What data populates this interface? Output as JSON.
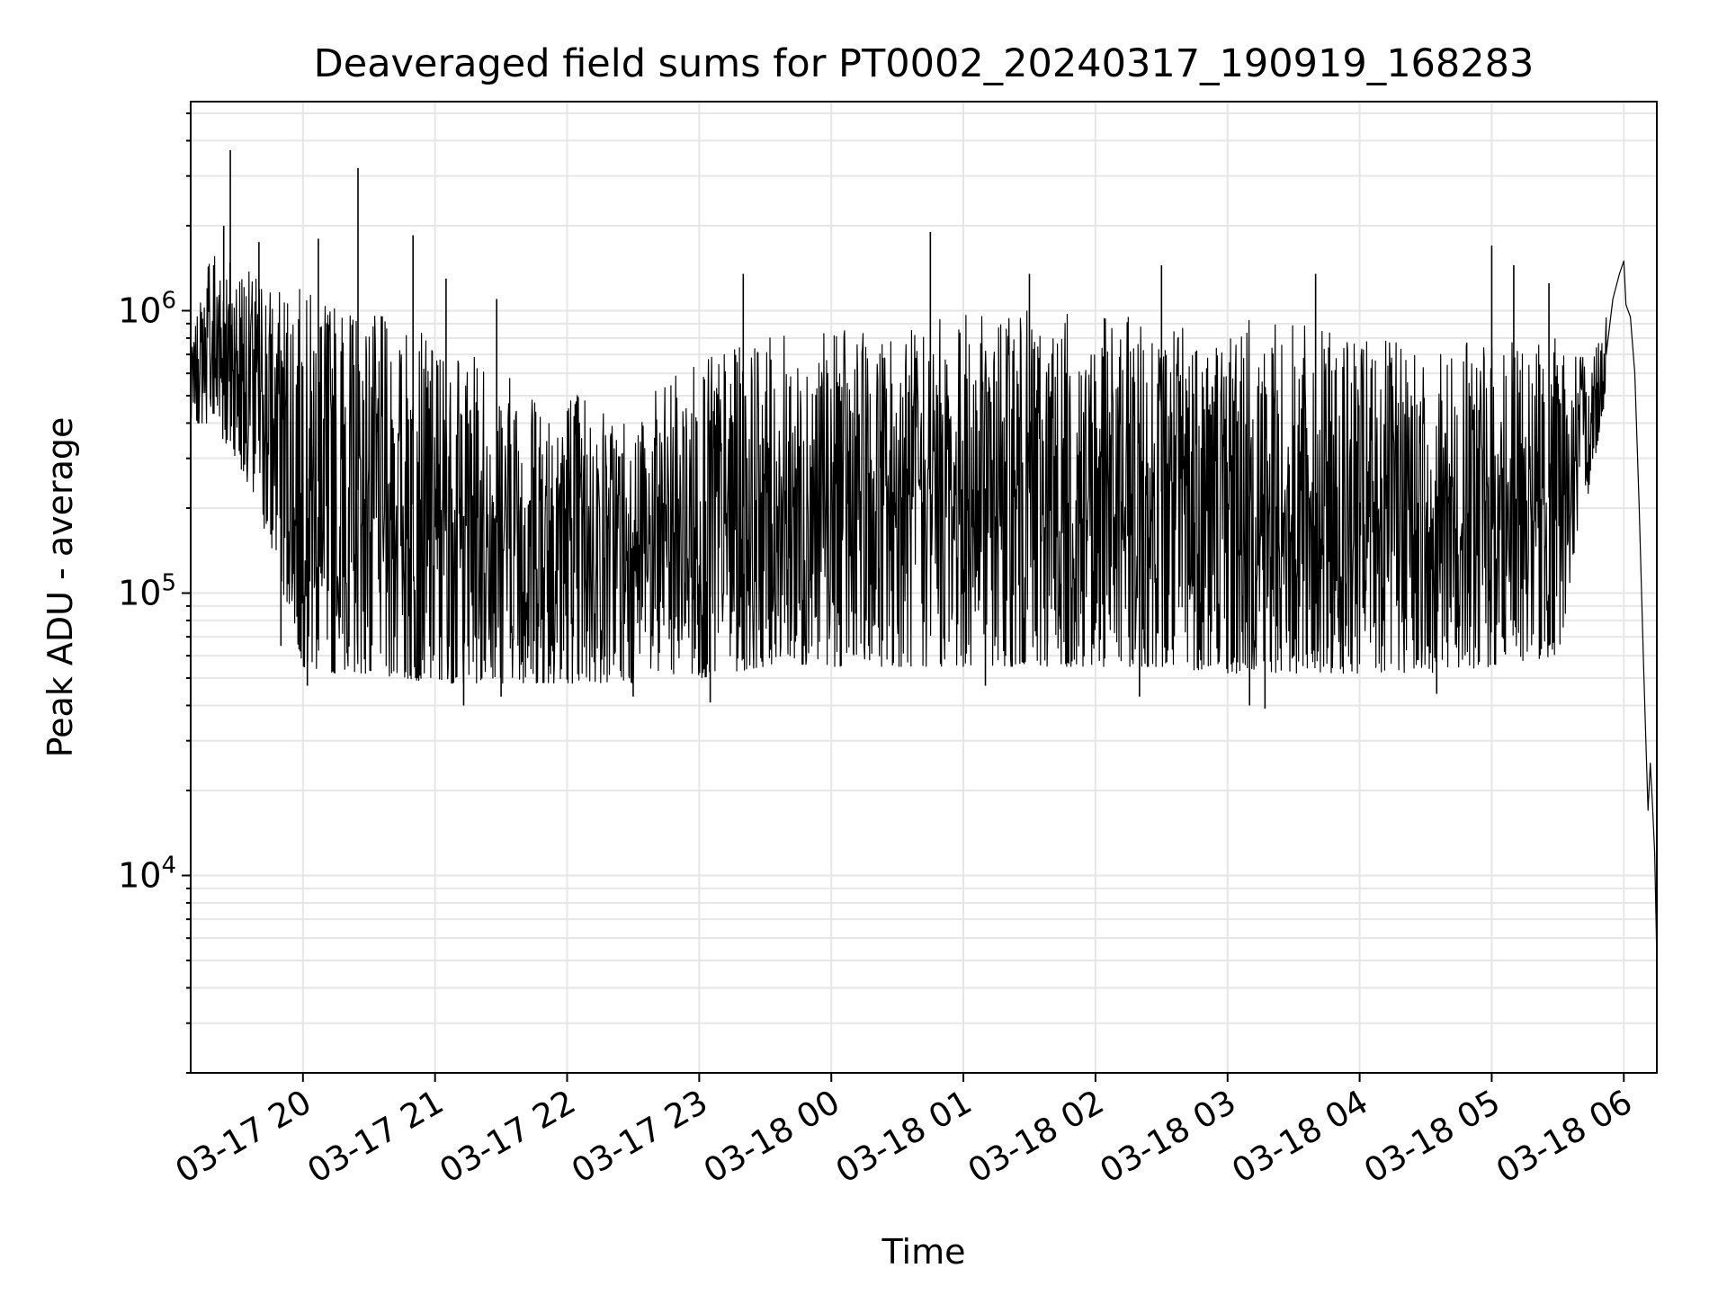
{
  "chart_data": {
    "type": "line",
    "title": "Deaveraged field sums for PT0002_20240317_190919_168283",
    "xlabel": "Time",
    "ylabel": "Peak ADU - average",
    "yscale": "log",
    "ylim": [
      2000,
      5500000
    ],
    "xlim": [
      "2024-03-17 19:09",
      "2024-03-18 06:15"
    ],
    "grid": true,
    "line_color": "#000000",
    "grid_color": "#e6e6e6",
    "x_ticks": [
      {
        "t": "2024-03-17 20:00",
        "label": "03-17 20"
      },
      {
        "t": "2024-03-17 21:00",
        "label": "03-17 21"
      },
      {
        "t": "2024-03-17 22:00",
        "label": "03-17 22"
      },
      {
        "t": "2024-03-17 23:00",
        "label": "03-17 23"
      },
      {
        "t": "2024-03-18 00:00",
        "label": "03-18 00"
      },
      {
        "t": "2024-03-18 01:00",
        "label": "03-18 01"
      },
      {
        "t": "2024-03-18 02:00",
        "label": "03-18 02"
      },
      {
        "t": "2024-03-18 03:00",
        "label": "03-18 03"
      },
      {
        "t": "2024-03-18 04:00",
        "label": "03-18 04"
      },
      {
        "t": "2024-03-18 05:00",
        "label": "03-18 05"
      },
      {
        "t": "2024-03-18 06:00",
        "label": "03-18 06"
      }
    ],
    "y_ticks": [
      {
        "value": 10000,
        "label": "10",
        "exp": "4"
      },
      {
        "value": 100000,
        "label": "10",
        "exp": "5"
      },
      {
        "value": 1000000,
        "label": "10",
        "exp": "6"
      }
    ],
    "envelope": [
      {
        "t": "2024-03-17 19:09",
        "low": 400000,
        "high": 700000
      },
      {
        "t": "2024-03-17 19:18",
        "low": 400000,
        "high": 1800000
      },
      {
        "t": "2024-03-17 19:30",
        "low": 300000,
        "high": 1500000
      },
      {
        "t": "2024-03-17 19:45",
        "low": 150000,
        "high": 1300000
      },
      {
        "t": "2024-03-17 20:00",
        "low": 55000,
        "high": 1200000
      },
      {
        "t": "2024-03-17 20:15",
        "low": 52000,
        "high": 1100000
      },
      {
        "t": "2024-03-17 20:30",
        "low": 52000,
        "high": 1000000
      },
      {
        "t": "2024-03-17 21:00",
        "low": 48000,
        "high": 800000
      },
      {
        "t": "2024-03-17 21:30",
        "low": 48000,
        "high": 650000
      },
      {
        "t": "2024-03-17 22:00",
        "low": 48000,
        "high": 550000
      },
      {
        "t": "2024-03-17 22:30",
        "low": 48000,
        "high": 450000
      },
      {
        "t": "2024-03-17 23:00",
        "low": 50000,
        "high": 700000
      },
      {
        "t": "2024-03-17 23:30",
        "low": 55000,
        "high": 800000
      },
      {
        "t": "2024-03-18 00:00",
        "low": 55000,
        "high": 850000
      },
      {
        "t": "2024-03-18 00:30",
        "low": 55000,
        "high": 850000
      },
      {
        "t": "2024-03-18 01:00",
        "low": 55000,
        "high": 1000000
      },
      {
        "t": "2024-03-18 01:30",
        "low": 55000,
        "high": 1000000
      },
      {
        "t": "2024-03-18 02:00",
        "low": 55000,
        "high": 950000
      },
      {
        "t": "2024-03-18 02:30",
        "low": 55000,
        "high": 950000
      },
      {
        "t": "2024-03-18 03:00",
        "low": 52000,
        "high": 950000
      },
      {
        "t": "2024-03-18 03:30",
        "low": 52000,
        "high": 900000
      },
      {
        "t": "2024-03-18 04:00",
        "low": 52000,
        "high": 800000
      },
      {
        "t": "2024-03-18 04:30",
        "low": 52000,
        "high": 750000
      },
      {
        "t": "2024-03-18 05:00",
        "low": 55000,
        "high": 800000
      },
      {
        "t": "2024-03-18 05:30",
        "low": 60000,
        "high": 800000
      },
      {
        "t": "2024-03-18 05:45",
        "low": 250000,
        "high": 700000
      },
      {
        "t": "2024-03-18 05:52",
        "low": 500000,
        "high": 1000000
      }
    ],
    "tail": [
      {
        "t": "2024-03-18 05:52",
        "value": 700000
      },
      {
        "t": "2024-03-18 05:55",
        "value": 1100000
      },
      {
        "t": "2024-03-18 05:58",
        "value": 1350000
      },
      {
        "t": "2024-03-18 06:00",
        "value": 1500000
      },
      {
        "t": "2024-03-18 06:01",
        "value": 1050000
      },
      {
        "t": "2024-03-18 06:03",
        "value": 950000
      },
      {
        "t": "2024-03-18 06:05",
        "value": 600000
      },
      {
        "t": "2024-03-18 06:07",
        "value": 200000
      },
      {
        "t": "2024-03-18 06:09",
        "value": 55000
      },
      {
        "t": "2024-03-18 06:10",
        "value": 30000
      },
      {
        "t": "2024-03-18 06:11",
        "value": 17000
      },
      {
        "t": "2024-03-18 06:12",
        "value": 25000
      },
      {
        "t": "2024-03-18 06:13",
        "value": 18000
      },
      {
        "t": "2024-03-18 06:14",
        "value": 12000
      },
      {
        "t": "2024-03-18 06:15",
        "value": 5000
      }
    ],
    "spikes": [
      {
        "t": "2024-03-17 19:27",
        "value": 3700000
      },
      {
        "t": "2024-03-17 19:24",
        "value": 2000000
      },
      {
        "t": "2024-03-17 19:40",
        "value": 1750000
      },
      {
        "t": "2024-03-17 20:07",
        "value": 1800000
      },
      {
        "t": "2024-03-17 20:25",
        "value": 3200000
      },
      {
        "t": "2024-03-17 20:50",
        "value": 1850000
      },
      {
        "t": "2024-03-17 21:05",
        "value": 1300000
      },
      {
        "t": "2024-03-17 21:28",
        "value": 1100000
      },
      {
        "t": "2024-03-17 23:20",
        "value": 1350000
      },
      {
        "t": "2024-03-18 00:45",
        "value": 1900000
      },
      {
        "t": "2024-03-18 01:30",
        "value": 1350000
      },
      {
        "t": "2024-03-18 02:30",
        "value": 1450000
      },
      {
        "t": "2024-03-18 03:40",
        "value": 1350000
      },
      {
        "t": "2024-03-18 05:00",
        "value": 1700000
      },
      {
        "t": "2024-03-18 05:10",
        "value": 1450000
      },
      {
        "t": "2024-03-18 05:26",
        "value": 1250000
      }
    ],
    "dips": [
      {
        "t": "2024-03-17 19:50",
        "value": 65000
      },
      {
        "t": "2024-03-17 20:02",
        "value": 47000
      },
      {
        "t": "2024-03-17 21:13",
        "value": 40000
      },
      {
        "t": "2024-03-17 21:30",
        "value": 43000
      },
      {
        "t": "2024-03-17 22:30",
        "value": 43000
      },
      {
        "t": "2024-03-17 23:05",
        "value": 41000
      },
      {
        "t": "2024-03-18 01:10",
        "value": 47000
      },
      {
        "t": "2024-03-18 02:20",
        "value": 43000
      },
      {
        "t": "2024-03-18 03:10",
        "value": 40000
      },
      {
        "t": "2024-03-18 03:17",
        "value": 39000
      },
      {
        "t": "2024-03-18 04:35",
        "value": 44000
      }
    ]
  }
}
